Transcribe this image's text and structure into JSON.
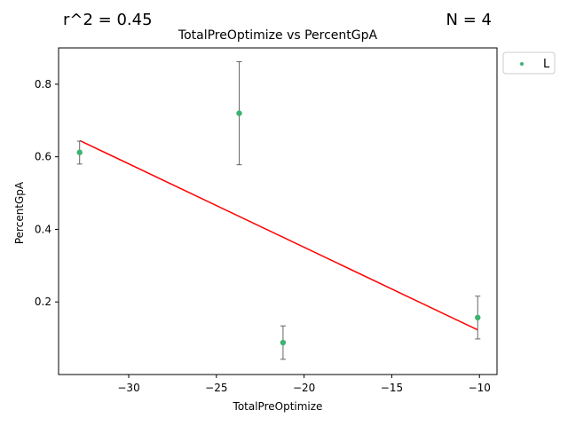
{
  "annotations": {
    "r_squared": "r^2 = 0.45",
    "n": "N = 4"
  },
  "chart_data": {
    "type": "scatter",
    "title": "TotalPreOptimize vs PercentGpA",
    "xlabel": "TotalPreOptimize",
    "ylabel": "PercentGpA",
    "xlim": [
      -34,
      -9
    ],
    "ylim": [
      0,
      0.9
    ],
    "xticks": [
      -30,
      -25,
      -20,
      -15,
      -10
    ],
    "yticks": [
      0.2,
      0.4,
      0.6,
      0.8
    ],
    "grid": false,
    "legend": {
      "position": "outside-top-right",
      "entries": [
        "L"
      ]
    },
    "colors": {
      "points": "#3cb371",
      "fit": "#ff0000",
      "errorbars": "#666666"
    },
    "series": [
      {
        "name": "L",
        "points": [
          {
            "x": -32.8,
            "y": 0.612,
            "err_low": 0.032,
            "err_high": 0.031
          },
          {
            "x": -23.7,
            "y": 0.72,
            "err_low": 0.142,
            "err_high": 0.142
          },
          {
            "x": -21.2,
            "y": 0.088,
            "err_low": 0.046,
            "err_high": 0.046
          },
          {
            "x": -10.1,
            "y": 0.157,
            "err_low": 0.059,
            "err_high": 0.059
          }
        ]
      }
    ],
    "fit_line": {
      "x": [
        -32.8,
        -10.1
      ],
      "y": [
        0.645,
        0.123
      ]
    }
  }
}
